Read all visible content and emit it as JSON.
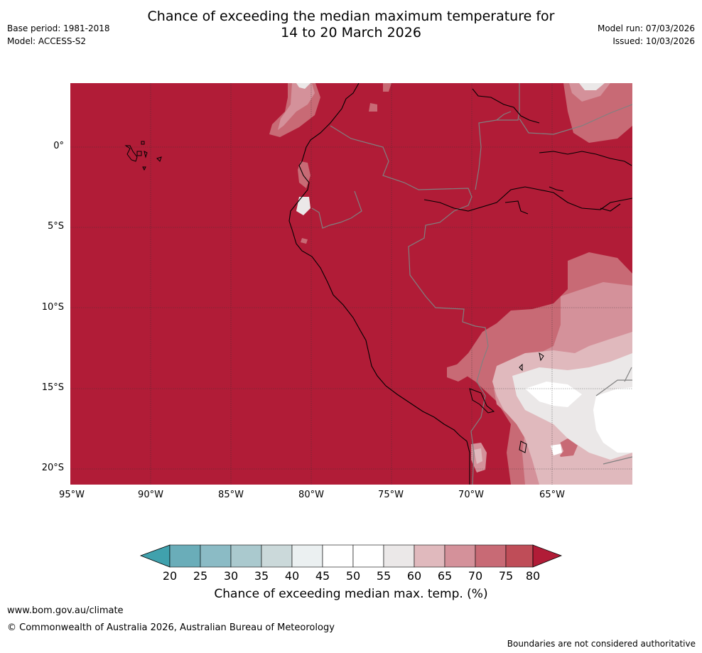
{
  "header": {
    "title_line1": "Chance of exceeding the median maximum temperature for",
    "title_line2": "14 to 20 March 2026",
    "base_period": "Base period: 1981-2018",
    "model": "Model: ACCESS-S2",
    "model_run": "Model run: 07/03/2026",
    "issued": "Issued: 10/03/2026"
  },
  "map": {
    "lat_labels": [
      "0°",
      "5°S",
      "10°S",
      "15°S",
      "20°S"
    ],
    "lon_labels": [
      "95°W",
      "90°W",
      "85°W",
      "80°W",
      "75°W",
      "70°W",
      "65°W"
    ],
    "base_color": "#b11c37",
    "coast_color": "#000000",
    "border_color": "#808080"
  },
  "colorbar": {
    "ticks": [
      "20",
      "25",
      "30",
      "35",
      "40",
      "45",
      "50",
      "55",
      "60",
      "65",
      "70",
      "75",
      "80"
    ],
    "colors": [
      "#40a1ad",
      "#6aadb9",
      "#8bbbc5",
      "#aac9ce",
      "#cbd9da",
      "#ebf0f1",
      "#ffffff",
      "#ffffff",
      "#ebe8e8",
      "#e0b9bd",
      "#d4919a",
      "#c86a75",
      "#bf4d58",
      "#b11c37"
    ],
    "label": "Chance of exceeding median max. temp. (%)"
  },
  "footer": {
    "url": "www.bom.gov.au/climate",
    "copyright": "© Commonwealth of Australia 2026, Australian Bureau of Meteorology",
    "note": "Boundaries are not considered authoritative"
  }
}
